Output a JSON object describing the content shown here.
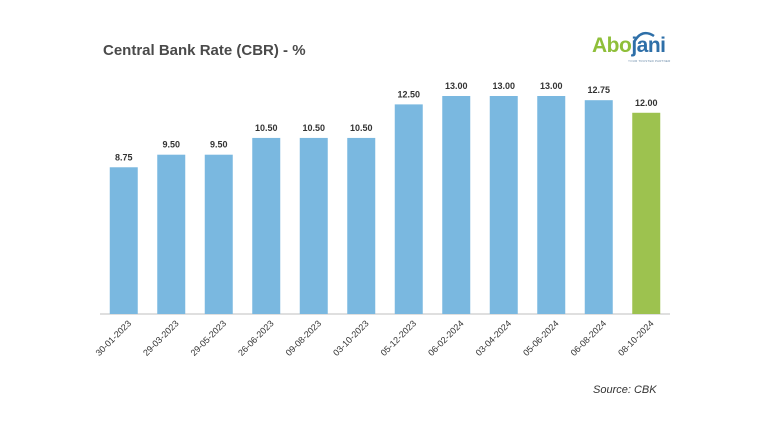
{
  "header": {
    "title": "Central Bank Rate (CBR) - %"
  },
  "logo": {
    "text_part1": "Abo",
    "text_part2": "jani",
    "tagline": "YOUR TRUSTED PARTNER"
  },
  "footer": {
    "source": "Source: CBK"
  },
  "colors": {
    "bar_default": "#7ab8e0",
    "bar_highlight": "#9dc24f",
    "axis": "#bfbfbf",
    "label": "#333333"
  },
  "chart_data": {
    "type": "bar",
    "title": "Central Bank Rate (CBR) - %",
    "xlabel": "",
    "ylabel": "",
    "categories": [
      "30-01-2023",
      "29-03-2023",
      "29-05-2023",
      "26-06-2023",
      "09-08-2023",
      "03-10-2023",
      "05-12-2023",
      "06-02-2024",
      "03-04-2024",
      "05-06-2024",
      "06-08-2024",
      "08-10-2024"
    ],
    "values": [
      8.75,
      9.5,
      9.5,
      10.5,
      10.5,
      10.5,
      12.5,
      13.0,
      13.0,
      13.0,
      12.75,
      12.0
    ],
    "value_labels": [
      "8.75",
      "9.50",
      "9.50",
      "10.50",
      "10.50",
      "10.50",
      "12.50",
      "13.00",
      "13.00",
      "13.00",
      "12.75",
      "12.00"
    ],
    "highlight_index": 11,
    "ylim": [
      0,
      13.0
    ],
    "grid": false,
    "legend": "none"
  }
}
